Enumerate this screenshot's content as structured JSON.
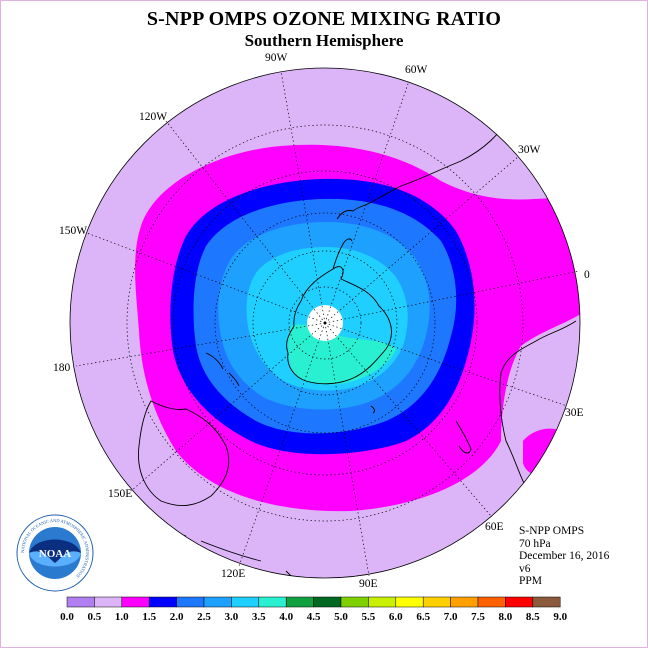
{
  "header": {
    "title": "S-NPP OMPS OZONE MIXING RATIO",
    "subtitle": "Southern Hemisphere"
  },
  "map": {
    "projection": "south-polar-stereographic",
    "longitude_labels": [
      "90W",
      "60W",
      "30W",
      "0",
      "30E",
      "60E",
      "90E",
      "120E",
      "150E",
      "180",
      "150W",
      "120W"
    ],
    "bands": [
      {
        "range": "0.5-1.0",
        "color": "#dcb4f8"
      },
      {
        "range": "1.0-1.5",
        "color": "#ff00ff"
      },
      {
        "range": "1.5-2.0",
        "color": "#0000ff"
      },
      {
        "range": "2.0-2.5",
        "color": "#1e78ff"
      },
      {
        "range": "2.5-3.0",
        "color": "#1ea0ff"
      },
      {
        "range": "3.0-3.5",
        "color": "#1ecfff"
      },
      {
        "range": "3.5-4.0",
        "color": "#28f0d0"
      }
    ]
  },
  "info": {
    "instrument": "S-NPP OMPS",
    "level": "70 hPa",
    "date": "December 16, 2016",
    "version": "v6",
    "units": "PPM"
  },
  "logo": {
    "text": "NOAA",
    "ring_text": "NATIONAL OCEANIC AND ATMOSPHERIC ADMINISTRATION"
  },
  "colorbar": {
    "colors": [
      "#b080f0",
      "#dcb4f8",
      "#ff00ff",
      "#0000ff",
      "#1e78ff",
      "#1ea0ff",
      "#1ecfff",
      "#28f0d0",
      "#10a040",
      "#006820",
      "#7ed000",
      "#c8f000",
      "#ffff00",
      "#ffd000",
      "#ffa000",
      "#ff6000",
      "#ff0000",
      "#8b5a3c"
    ],
    "tick_labels": [
      "0.0",
      "0.5",
      "1.0",
      "1.5",
      "2.0",
      "2.5",
      "3.0",
      "3.5",
      "4.0",
      "4.5",
      "5.0",
      "5.5",
      "6.0",
      "6.5",
      "7.0",
      "7.5",
      "8.0",
      "8.5",
      "9.0"
    ]
  }
}
